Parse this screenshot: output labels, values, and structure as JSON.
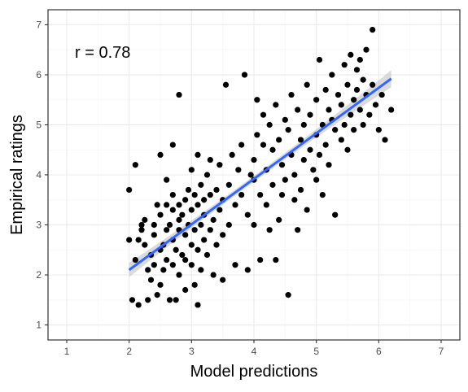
{
  "chart_data": {
    "type": "scatter",
    "title": "",
    "xlabel": "Model predictions",
    "ylabel": "Empirical ratings",
    "xlim": [
      0.7,
      7.3
    ],
    "ylim": [
      0.7,
      7.3
    ],
    "x_ticks": [
      1,
      2,
      3,
      4,
      5,
      6,
      7
    ],
    "y_ticks": [
      1,
      2,
      3,
      4,
      5,
      6,
      7
    ],
    "x_tick_labels": [
      "1",
      "2",
      "3",
      "4",
      "5",
      "6",
      "7"
    ],
    "y_tick_labels": [
      "1",
      "2",
      "3",
      "4",
      "5",
      "6",
      "7"
    ],
    "grid": true,
    "annotation": "r = 0.78",
    "colors": {
      "points": "#000000",
      "fit_line": "#3366FF",
      "confidence_band": "#bdbdbd",
      "grid_major": "#ebebeb",
      "grid_minor": "#f5f5f5",
      "frame": "#333333"
    },
    "fit": {
      "x_range": [
        2.0,
        6.2
      ],
      "slope": 0.91,
      "intercept": 0.28,
      "ci_halfwidth_ends": 0.17,
      "ci_halfwidth_mid": 0.06,
      "ci_center_x": 3.95
    },
    "points": [
      [
        2.0,
        3.7
      ],
      [
        2.0,
        2.7
      ],
      [
        2.05,
        1.5
      ],
      [
        2.1,
        2.3
      ],
      [
        2.15,
        1.4
      ],
      [
        2.15,
        2.7
      ],
      [
        2.1,
        4.2
      ],
      [
        2.2,
        3.0
      ],
      [
        2.2,
        2.9
      ],
      [
        2.25,
        3.1
      ],
      [
        2.25,
        2.6
      ],
      [
        2.3,
        2.1
      ],
      [
        2.3,
        1.5
      ],
      [
        2.35,
        2.4
      ],
      [
        2.35,
        1.9
      ],
      [
        2.4,
        2.8
      ],
      [
        2.4,
        3.0
      ],
      [
        2.4,
        2.2
      ],
      [
        2.45,
        1.6
      ],
      [
        2.45,
        3.4
      ],
      [
        2.5,
        2.5
      ],
      [
        2.5,
        4.4
      ],
      [
        2.5,
        1.8
      ],
      [
        2.5,
        3.2
      ],
      [
        2.55,
        2.6
      ],
      [
        2.55,
        2.1
      ],
      [
        2.6,
        3.9
      ],
      [
        2.6,
        3.4
      ],
      [
        2.6,
        2.9
      ],
      [
        2.6,
        2.3
      ],
      [
        2.65,
        1.5
      ],
      [
        2.65,
        3.0
      ],
      [
        2.7,
        3.3
      ],
      [
        2.7,
        2.7
      ],
      [
        2.7,
        2.2
      ],
      [
        2.7,
        3.6
      ],
      [
        2.7,
        4.6
      ],
      [
        2.75,
        2.5
      ],
      [
        2.75,
        1.5
      ],
      [
        2.8,
        3.4
      ],
      [
        2.8,
        3.1
      ],
      [
        2.8,
        2.9
      ],
      [
        2.8,
        2.0
      ],
      [
        2.8,
        5.6
      ],
      [
        2.85,
        3.2
      ],
      [
        2.85,
        2.4
      ],
      [
        2.9,
        3.5
      ],
      [
        2.9,
        2.8
      ],
      [
        2.9,
        2.3
      ],
      [
        2.9,
        1.7
      ],
      [
        2.95,
        3.0
      ],
      [
        2.95,
        3.7
      ],
      [
        3.0,
        3.3
      ],
      [
        3.0,
        2.6
      ],
      [
        3.0,
        2.2
      ],
      [
        3.0,
        4.1
      ],
      [
        3.05,
        2.9
      ],
      [
        3.05,
        3.6
      ],
      [
        3.05,
        1.8
      ],
      [
        3.1,
        3.4
      ],
      [
        3.1,
        2.5
      ],
      [
        3.1,
        1.4
      ],
      [
        3.1,
        4.4
      ],
      [
        3.15,
        3.0
      ],
      [
        3.15,
        3.8
      ],
      [
        3.15,
        2.1
      ],
      [
        3.2,
        3.2
      ],
      [
        3.2,
        2.7
      ],
      [
        3.2,
        3.5
      ],
      [
        3.25,
        4.0
      ],
      [
        3.25,
        2.4
      ],
      [
        3.3,
        3.6
      ],
      [
        3.3,
        2.9
      ],
      [
        3.3,
        4.3
      ],
      [
        3.35,
        3.1
      ],
      [
        3.35,
        2.0
      ],
      [
        3.4,
        3.7
      ],
      [
        3.4,
        2.6
      ],
      [
        3.45,
        4.2
      ],
      [
        3.45,
        3.3
      ],
      [
        3.5,
        3.5
      ],
      [
        3.5,
        2.8
      ],
      [
        3.5,
        1.9
      ],
      [
        3.55,
        5.8
      ],
      [
        3.6,
        3.8
      ],
      [
        3.6,
        3.0
      ],
      [
        3.65,
        4.4
      ],
      [
        3.7,
        3.4
      ],
      [
        3.7,
        2.2
      ],
      [
        3.75,
        4.1
      ],
      [
        3.8,
        3.6
      ],
      [
        3.8,
        4.6
      ],
      [
        3.85,
        6.0
      ],
      [
        3.9,
        3.2
      ],
      [
        3.9,
        2.1
      ],
      [
        3.95,
        4.0
      ],
      [
        4.0,
        3.9
      ],
      [
        4.0,
        4.3
      ],
      [
        4.0,
        3.0
      ],
      [
        4.05,
        4.8
      ],
      [
        4.05,
        5.5
      ],
      [
        4.1,
        3.6
      ],
      [
        4.1,
        2.3
      ],
      [
        4.15,
        4.6
      ],
      [
        4.15,
        5.2
      ],
      [
        4.2,
        3.4
      ],
      [
        4.2,
        4.1
      ],
      [
        4.25,
        5.0
      ],
      [
        4.25,
        2.9
      ],
      [
        4.3,
        3.8
      ],
      [
        4.3,
        4.5
      ],
      [
        4.35,
        5.4
      ],
      [
        4.35,
        2.3
      ],
      [
        4.4,
        3.1
      ],
      [
        4.4,
        4.7
      ],
      [
        4.45,
        3.6
      ],
      [
        4.45,
        4.2
      ],
      [
        4.5,
        5.1
      ],
      [
        4.5,
        3.9
      ],
      [
        4.55,
        1.6
      ],
      [
        4.55,
        4.9
      ],
      [
        4.6,
        4.4
      ],
      [
        4.6,
        5.6
      ],
      [
        4.65,
        3.5
      ],
      [
        4.65,
        4.0
      ],
      [
        4.7,
        5.3
      ],
      [
        4.7,
        2.9
      ],
      [
        4.75,
        4.7
      ],
      [
        4.75,
        3.7
      ],
      [
        4.8,
        5.0
      ],
      [
        4.8,
        4.3
      ],
      [
        4.85,
        5.8
      ],
      [
        4.85,
        3.3
      ],
      [
        4.9,
        4.5
      ],
      [
        4.9,
        5.2
      ],
      [
        4.95,
        4.1
      ],
      [
        5.0,
        5.5
      ],
      [
        5.0,
        4.8
      ],
      [
        5.0,
        3.9
      ],
      [
        5.05,
        6.3
      ],
      [
        5.05,
        4.4
      ],
      [
        5.1,
        5.0
      ],
      [
        5.1,
        3.6
      ],
      [
        5.15,
        5.7
      ],
      [
        5.15,
        4.6
      ],
      [
        5.2,
        5.3
      ],
      [
        5.2,
        4.2
      ],
      [
        5.25,
        6.0
      ],
      [
        5.25,
        5.1
      ],
      [
        5.3,
        4.9
      ],
      [
        5.3,
        3.2
      ],
      [
        5.35,
        5.6
      ],
      [
        5.4,
        5.4
      ],
      [
        5.4,
        4.7
      ],
      [
        5.45,
        6.2
      ],
      [
        5.45,
        5.0
      ],
      [
        5.5,
        5.8
      ],
      [
        5.5,
        4.5
      ],
      [
        5.55,
        5.2
      ],
      [
        5.55,
        6.4
      ],
      [
        5.6,
        5.5
      ],
      [
        5.6,
        4.9
      ],
      [
        5.65,
        6.1
      ],
      [
        5.65,
        5.7
      ],
      [
        5.7,
        5.3
      ],
      [
        5.7,
        6.3
      ],
      [
        5.75,
        5.9
      ],
      [
        5.75,
        5.0
      ],
      [
        5.8,
        6.5
      ],
      [
        5.8,
        5.6
      ],
      [
        5.85,
        5.2
      ],
      [
        5.9,
        6.9
      ],
      [
        5.9,
        5.8
      ],
      [
        5.95,
        5.4
      ],
      [
        6.0,
        4.9
      ],
      [
        6.05,
        5.6
      ],
      [
        6.1,
        4.7
      ],
      [
        6.2,
        5.3
      ]
    ]
  }
}
